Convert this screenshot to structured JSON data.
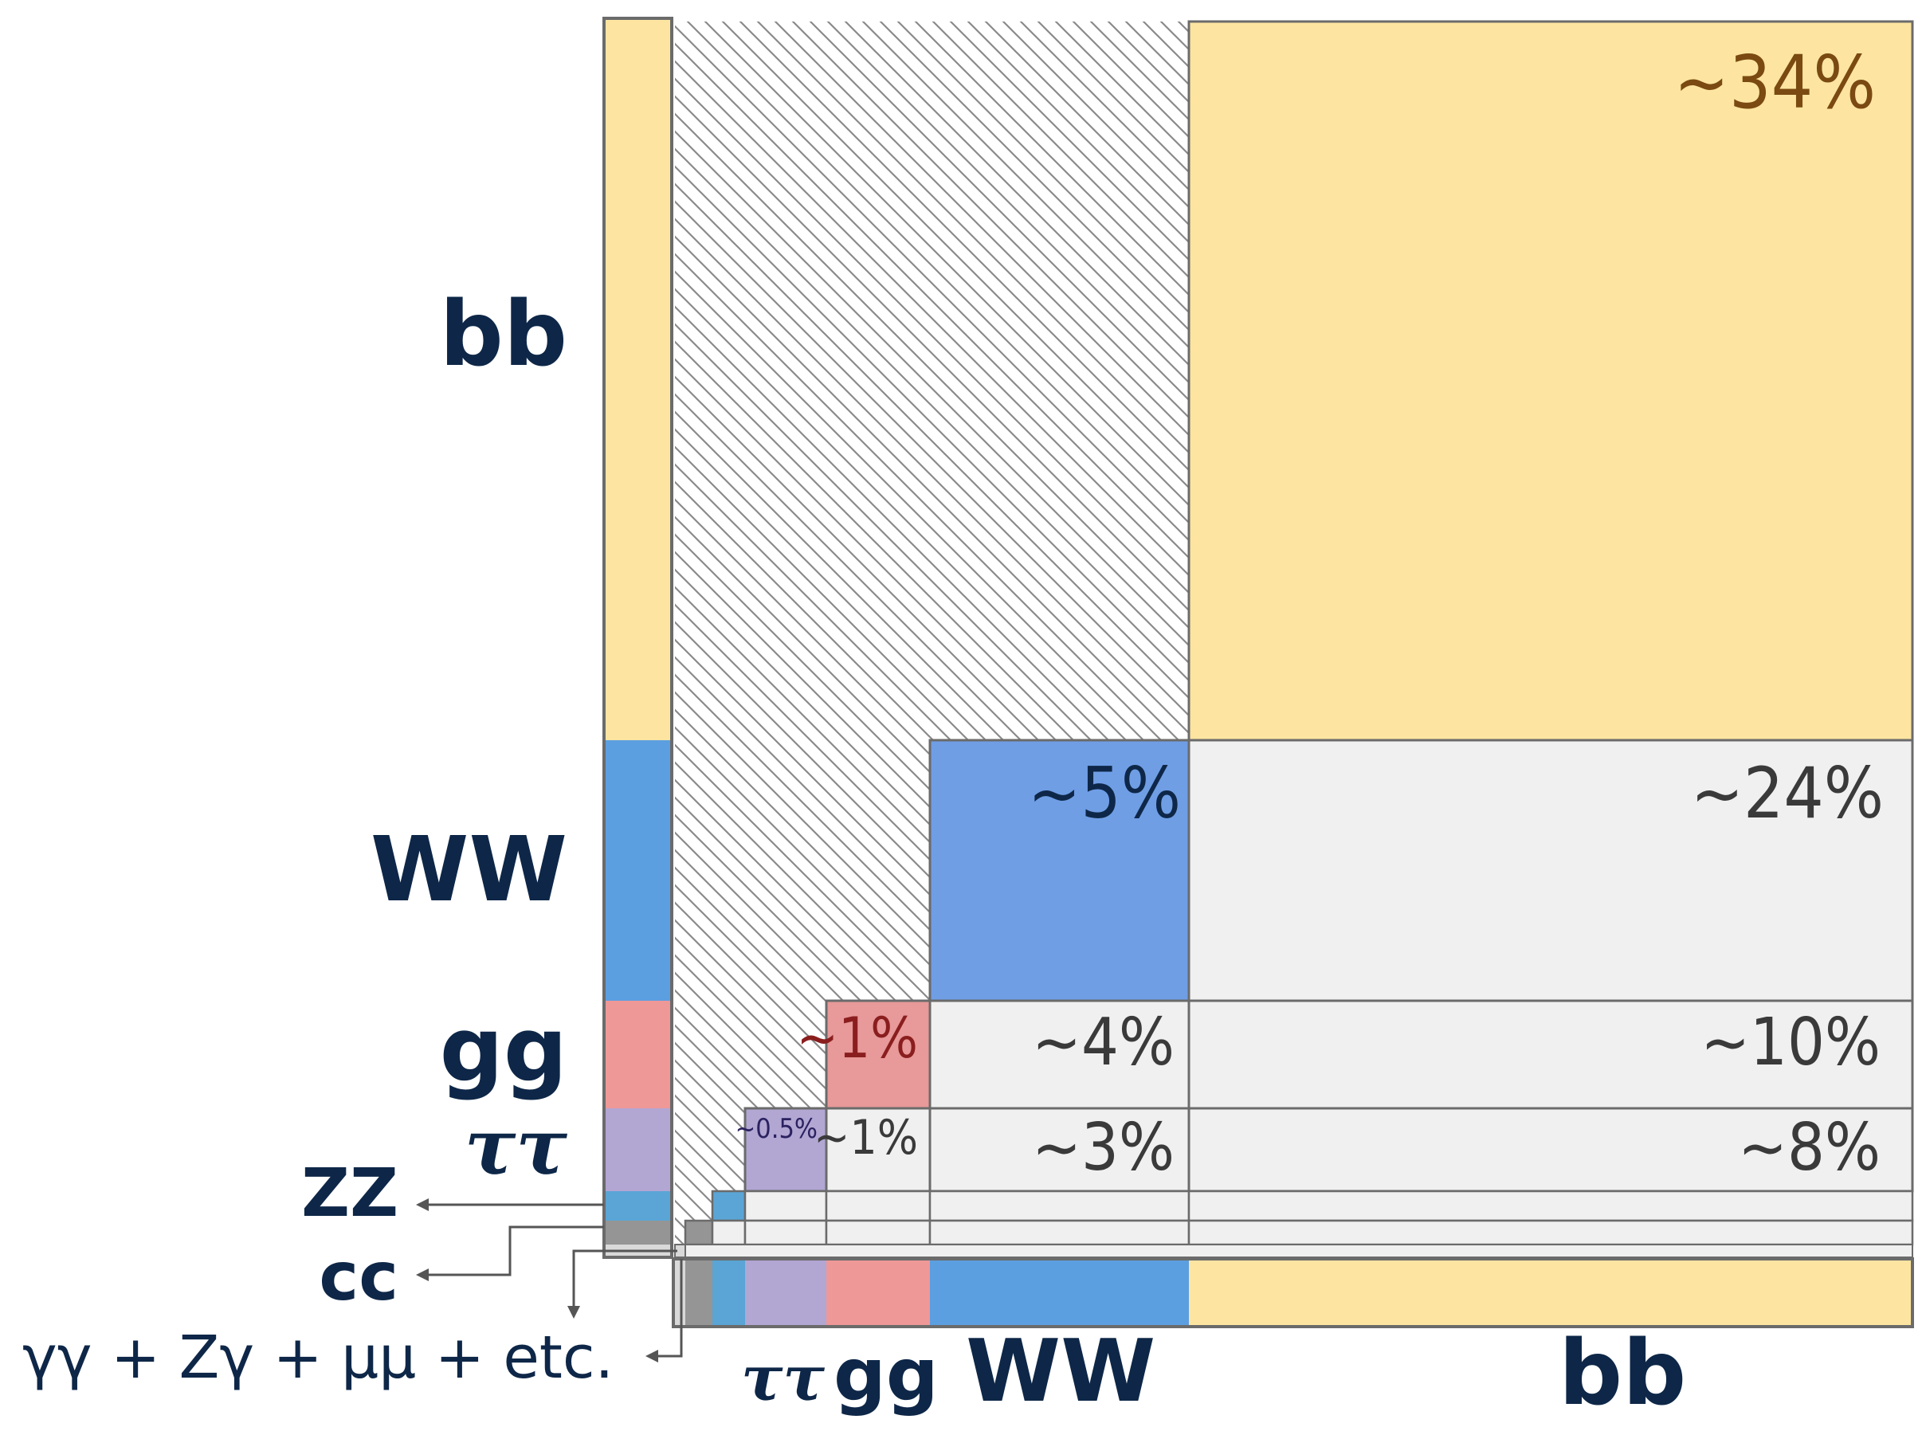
{
  "channels": {
    "bb": "bb",
    "WW": "WW",
    "gg": "gg",
    "tautau": "ττ",
    "ZZ": "ZZ",
    "cc": "cc",
    "other": "γγ + Zγ + μμ + etc."
  },
  "cells": {
    "bb_bb": "~34%",
    "WW_WW": "~5%",
    "WW_bb": "~24%",
    "gg_gg": "~1%",
    "gg_WW": "~4%",
    "gg_bb": "~10%",
    "tautau_tautau": "~0.5%",
    "tautau_gg": "~1%",
    "tautau_WW": "~3%",
    "tautau_bb": "~8%"
  },
  "colors": {
    "bb": "#fde5a1",
    "WW_bar": "#5c9fe0",
    "WW_cell": "#6f9ee5",
    "gg": "#ee9898",
    "gg_cell": "#e89999",
    "tautau": "#b2a6d3",
    "ZZ": "#5aa5d6",
    "cc": "#959595",
    "other": "#d9d9d9",
    "empty_cell": "#f0f0f0",
    "label": "#0e2748"
  },
  "chart_data": {
    "type": "heatmap",
    "categories": [
      "bb",
      "WW",
      "gg",
      "ττ",
      "ZZ",
      "cc",
      "γγ + Zγ + μμ + etc."
    ],
    "values": {
      "bb_bb": 34,
      "WW_WW": 5,
      "WW_bb": 24,
      "gg_gg": 1,
      "gg_WW": 4,
      "gg_bb": 10,
      "tautau_tautau": 0.5,
      "tautau_gg": 1,
      "tautau_WW": 3,
      "tautau_bb": 8
    }
  }
}
